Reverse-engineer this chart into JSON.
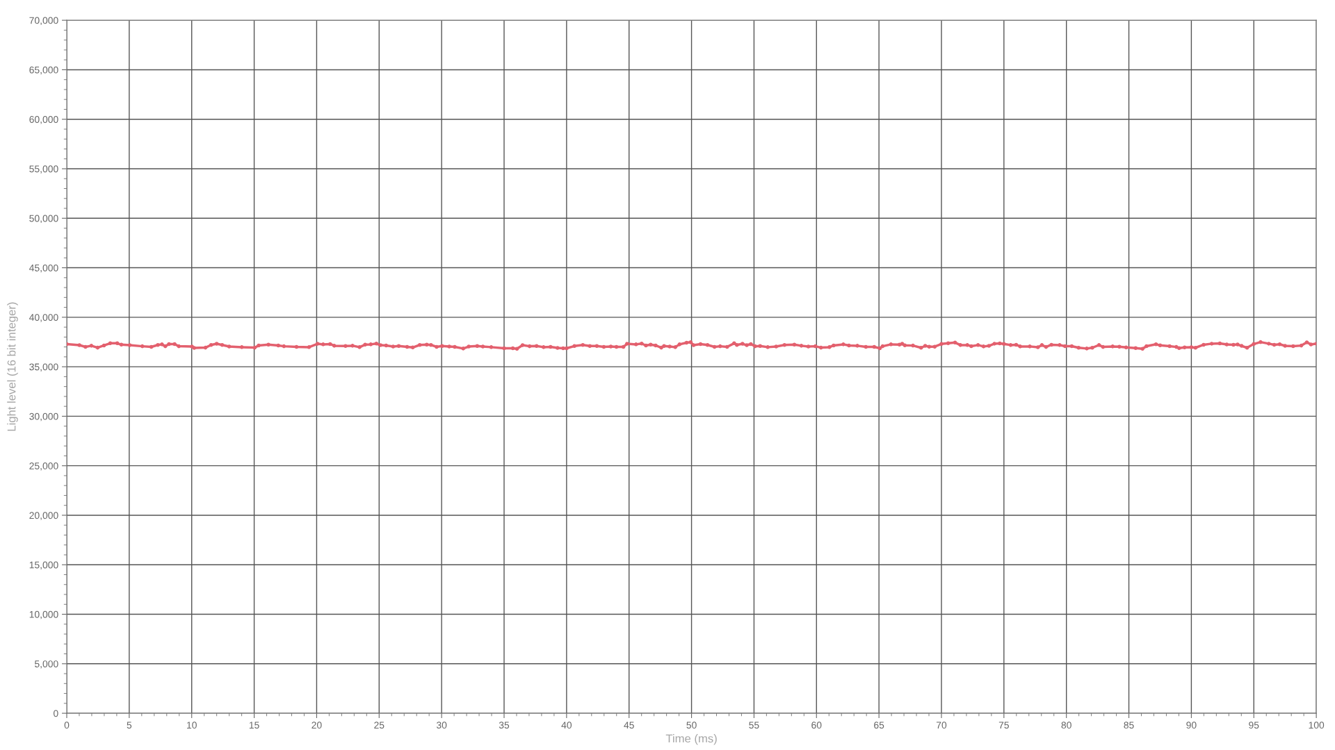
{
  "chart_data": {
    "type": "line",
    "xlabel": "Time (ms)",
    "ylabel": "Light level (16 bit integer)",
    "xlim": [
      0,
      100
    ],
    "ylim": [
      0,
      70000
    ],
    "xticks": [
      0,
      5,
      10,
      15,
      20,
      25,
      30,
      35,
      40,
      45,
      50,
      55,
      60,
      65,
      70,
      75,
      80,
      85,
      90,
      95,
      100
    ],
    "yticks": [
      0,
      {
        "value": 5000,
        "label": "5,000"
      },
      {
        "value": 10000,
        "label": "10,000"
      },
      {
        "value": 15000,
        "label": "15,000"
      },
      {
        "value": 20000,
        "label": "20,000"
      },
      {
        "value": 25000,
        "label": "25,000"
      },
      {
        "value": 30000,
        "label": "30,000"
      },
      {
        "value": 35000,
        "label": "35,000"
      },
      {
        "value": 40000,
        "label": "40,000"
      },
      {
        "value": 45000,
        "label": "45,000"
      },
      {
        "value": 50000,
        "label": "50,000"
      },
      {
        "value": 55000,
        "label": "55,000"
      },
      {
        "value": 60000,
        "label": "60,000"
      },
      {
        "value": 65000,
        "label": "65,000"
      },
      {
        "value": 70000,
        "label": "70,000"
      }
    ],
    "grid": true,
    "marker": "circle",
    "line_style": "solid",
    "series": [
      {
        "color": "#e3606e",
        "x": [
          0,
          1.01,
          1.5,
          1.97,
          2.47,
          2.98,
          3.48,
          4.04,
          4.37,
          5.04,
          6.05,
          6.77,
          7.29,
          7.62,
          7.89,
          8.18,
          8.63,
          8.97,
          10.02,
          10.2,
          11.1,
          11.55,
          12.0,
          12.44,
          13.0,
          14.01,
          15.04,
          15.36,
          16.14,
          16.93,
          17.38,
          18.39,
          19.39,
          20.07,
          20.52,
          21.08,
          21.41,
          22.31,
          22.87,
          23.43,
          23.88,
          24.33,
          24.78,
          25.11,
          25.56,
          26.12,
          26.57,
          27.24,
          27.69,
          28.25,
          28.81,
          29.15,
          29.6,
          30.04,
          30.61,
          31.05,
          31.73,
          32.17,
          32.85,
          33.3,
          33.97,
          35,
          35.7,
          36.03,
          36.48,
          37.04,
          37.6,
          38.16,
          38.72,
          39.28,
          39.73,
          40,
          40.63,
          41.3,
          41.86,
          42.42,
          42.98,
          43.54,
          43.99,
          44.55,
          44.84,
          45.56,
          46.01,
          46.35,
          46.73,
          47.13,
          47.58,
          47.8,
          48.25,
          48.7,
          49.04,
          49.6,
          49.93,
          50.16,
          50.72,
          51.28,
          51.84,
          52.29,
          52.85,
          53.41,
          53.63,
          54.08,
          54.42,
          54.75,
          55.09,
          55.49,
          56.1,
          56.77,
          57.44,
          58.23,
          58.79,
          59.35,
          59.91,
          60.36,
          61.03,
          61.37,
          62.15,
          62.6,
          63.27,
          63.95,
          64.62,
          65.07,
          65.29,
          65.96,
          66.64,
          66.86,
          67.07,
          67.72,
          68.37,
          68.7,
          69.02,
          69.46,
          70,
          70.54,
          71.09,
          71.52,
          72.07,
          72.39,
          72.93,
          73.37,
          73.8,
          74.24,
          74.67,
          75,
          75.54,
          75.98,
          76.3,
          77.07,
          77.72,
          78.04,
          78.37,
          78.8,
          79.46,
          79.89,
          80.43,
          80.98,
          81.63,
          82.07,
          82.61,
          82.93,
          83.7,
          84.24,
          84.78,
          85.54,
          86.09,
          86.41,
          87.17,
          87.5,
          88.26,
          88.8,
          89.02,
          89.46,
          90,
          90.33,
          90.98,
          91.63,
          92.28,
          92.83,
          93.37,
          93.7,
          94.02,
          94.46,
          95,
          95.54,
          96.2,
          96.63,
          97.07,
          97.5,
          98.15,
          98.8,
          99.24,
          99.57,
          100
        ],
        "values": [
          37290,
          37180,
          37010,
          37120,
          36930,
          37150,
          37370,
          37370,
          37230,
          37180,
          37070,
          37010,
          37200,
          37260,
          37070,
          37290,
          37290,
          37070,
          37040,
          36900,
          36930,
          37200,
          37320,
          37200,
          37040,
          36980,
          36930,
          37150,
          37230,
          37150,
          37070,
          37010,
          36980,
          37320,
          37260,
          37290,
          37120,
          37090,
          37120,
          36980,
          37230,
          37260,
          37340,
          37180,
          37150,
          37040,
          37090,
          37010,
          36950,
          37200,
          37230,
          37200,
          37010,
          37090,
          37040,
          37010,
          36840,
          37040,
          37090,
          37040,
          36980,
          36870,
          36870,
          36810,
          37180,
          37070,
          37090,
          36980,
          37010,
          36900,
          36870,
          36870,
          37090,
          37200,
          37090,
          37090,
          37010,
          37040,
          37010,
          37010,
          37320,
          37260,
          37340,
          37150,
          37230,
          37150,
          36930,
          37090,
          37040,
          36980,
          37260,
          37430,
          37480,
          37180,
          37290,
          37200,
          37010,
          37070,
          37010,
          37370,
          37200,
          37320,
          37180,
          37290,
          37070,
          37090,
          36980,
          37040,
          37200,
          37230,
          37120,
          37040,
          37070,
          36930,
          36980,
          37150,
          37260,
          37150,
          37120,
          37010,
          37010,
          36870,
          37070,
          37260,
          37230,
          37320,
          37160,
          37140,
          36920,
          37110,
          37030,
          37030,
          37300,
          37380,
          37440,
          37190,
          37190,
          37080,
          37190,
          37050,
          37110,
          37330,
          37360,
          37300,
          37190,
          37220,
          37050,
          37050,
          36970,
          37190,
          37000,
          37220,
          37190,
          37080,
          37080,
          36920,
          36840,
          36920,
          37190,
          37000,
          37050,
          37030,
          36950,
          36890,
          36810,
          37080,
          37270,
          37160,
          37080,
          37000,
          36890,
          36950,
          36970,
          36920,
          37220,
          37330,
          37360,
          37250,
          37220,
          37250,
          37110,
          36920,
          37300,
          37490,
          37330,
          37220,
          37270,
          37110,
          37080,
          37140,
          37470,
          37250,
          37330
        ]
      }
    ]
  }
}
